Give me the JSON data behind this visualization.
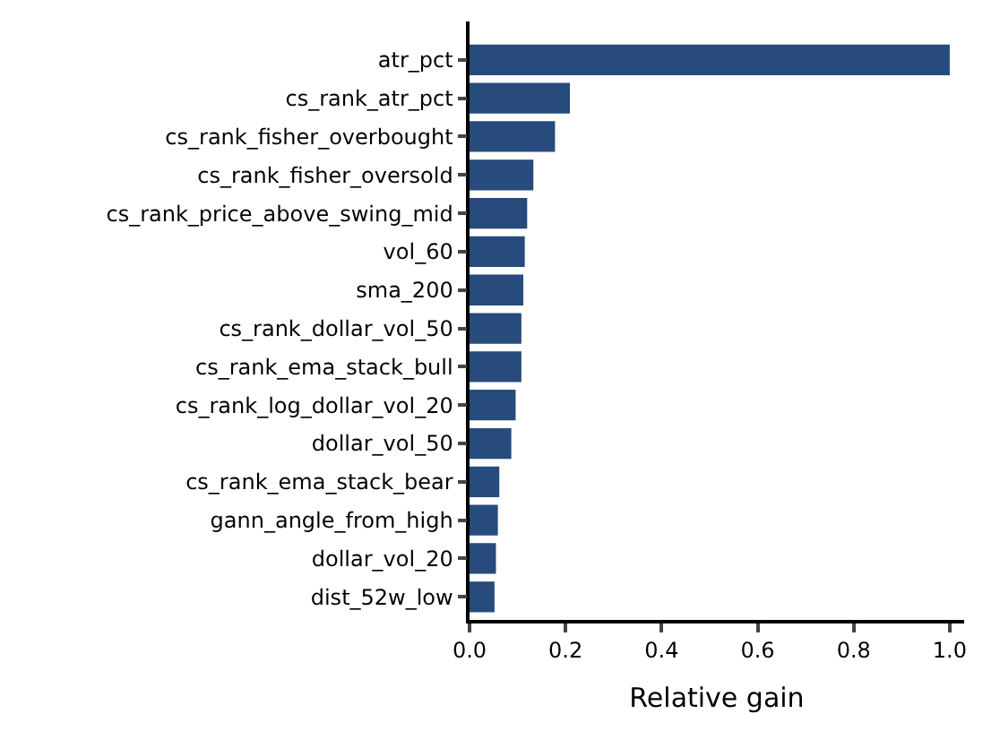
{
  "chart_data": {
    "type": "bar",
    "orientation": "horizontal",
    "xlabel": "Relative gain",
    "categories": [
      "atr_pct",
      "cs_rank_atr_pct",
      "cs_rank_fisher_overbought",
      "cs_rank_fisher_oversold",
      "cs_rank_price_above_swing_mid",
      "vol_60",
      "sma_200",
      "cs_rank_dollar_vol_50",
      "cs_rank_ema_stack_bull",
      "cs_rank_log_dollar_vol_20",
      "dollar_vol_50",
      "cs_rank_ema_stack_bear",
      "gann_angle_from_high",
      "dollar_vol_20",
      "dist_52w_low"
    ],
    "values": [
      1.0,
      0.209,
      0.178,
      0.133,
      0.12,
      0.115,
      0.112,
      0.108,
      0.108,
      0.096,
      0.087,
      0.062,
      0.059,
      0.055,
      0.052
    ],
    "color": "#264b7c",
    "xlim": [
      0,
      1.03
    ],
    "xticks": [
      {
        "value": 0,
        "label": "0.0"
      },
      0.2,
      0.4,
      0.6,
      0.8,
      {
        "value": 1,
        "label": "1.0"
      }
    ]
  }
}
